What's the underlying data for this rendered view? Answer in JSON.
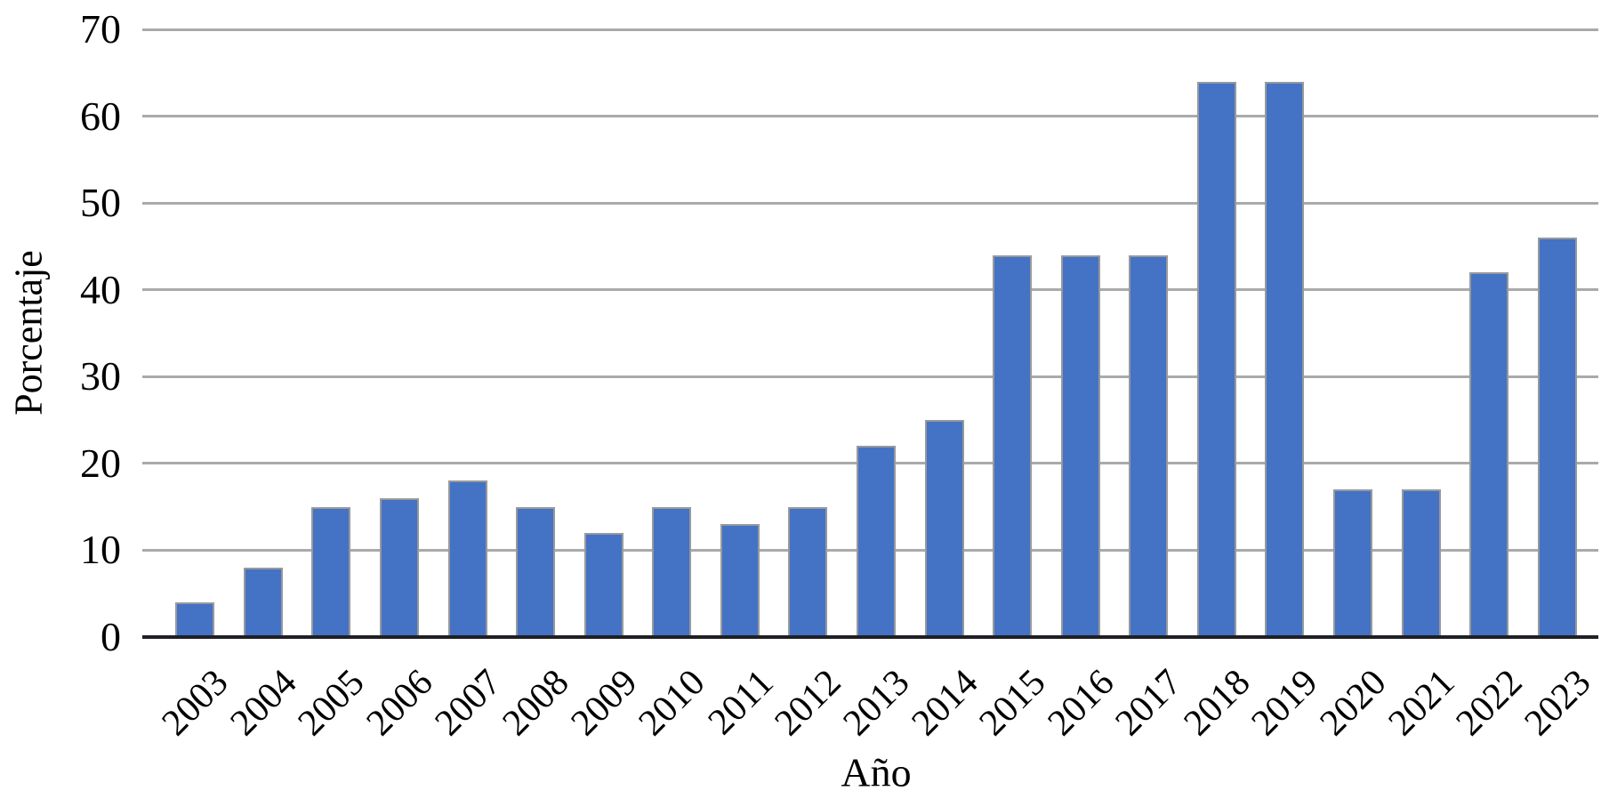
{
  "chart_data": {
    "type": "bar",
    "title": "",
    "xlabel": "Año",
    "ylabel": "Porcentaje",
    "categories": [
      "2003",
      "2004",
      "2005",
      "2006",
      "2007",
      "2008",
      "2009",
      "2010",
      "2011",
      "2012",
      "2013",
      "2014",
      "2015",
      "2016",
      "2017",
      "2018",
      "2019",
      "2020",
      "2021",
      "2022",
      "2023"
    ],
    "values": [
      4,
      8,
      15,
      16,
      18,
      15,
      12,
      15,
      13,
      15,
      22,
      25,
      44,
      44,
      44,
      64,
      64,
      17,
      17,
      42,
      46
    ],
    "ylim": [
      0,
      70
    ],
    "yticks": [
      0,
      10,
      20,
      30,
      40,
      50,
      60,
      70
    ],
    "grid": "horizontal",
    "legend": "none",
    "colors": {
      "bar_fill": "#4472C4",
      "bar_border": "#97999C",
      "gridline": "#A8AAAC",
      "axis_line": "#1F2023",
      "text": "#000000"
    }
  }
}
